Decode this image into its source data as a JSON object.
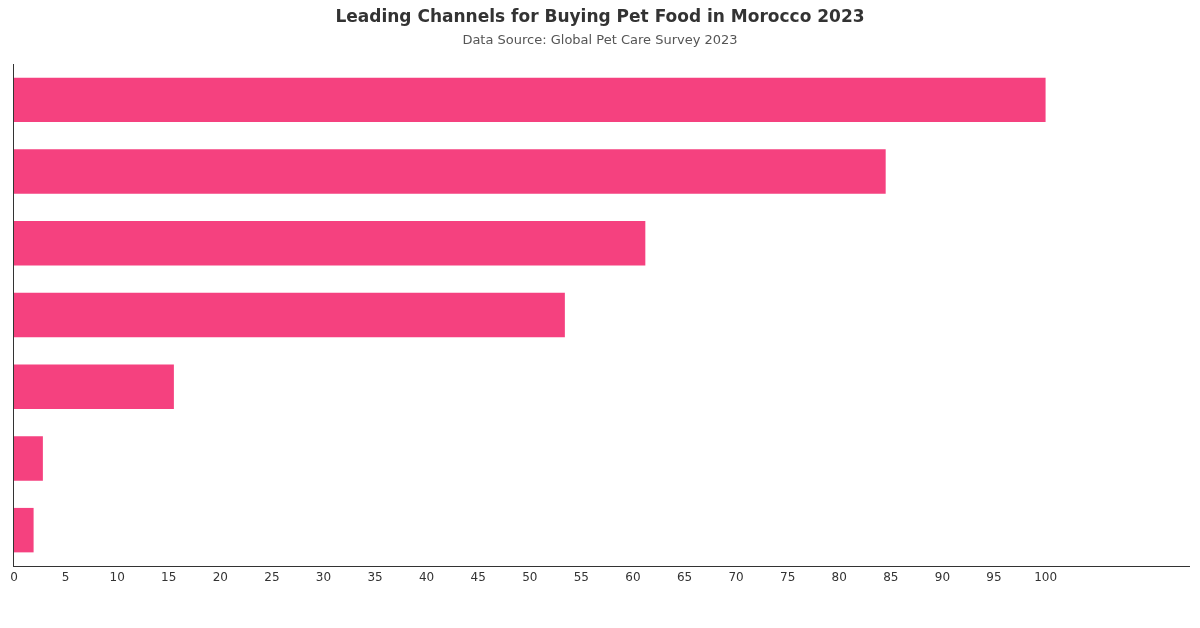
{
  "chart_data": {
    "type": "bar",
    "orientation": "horizontal",
    "title": "Leading Channels for Buying Pet Food in Morocco 2023",
    "subtitle": "Data Source: Global Pet Care Survey 2023",
    "categories": [
      null,
      null,
      null,
      null,
      null,
      null,
      null
    ],
    "values": [
      100,
      84.5,
      61.2,
      53.4,
      15.5,
      2.8,
      1.9
    ],
    "color": "#f5417f",
    "xlim": [
      0,
      114
    ],
    "xticks": [
      0,
      5,
      10,
      15,
      20,
      25,
      30,
      35,
      40,
      45,
      50,
      55,
      60,
      65,
      70,
      75,
      80,
      85,
      90,
      95,
      100
    ]
  }
}
